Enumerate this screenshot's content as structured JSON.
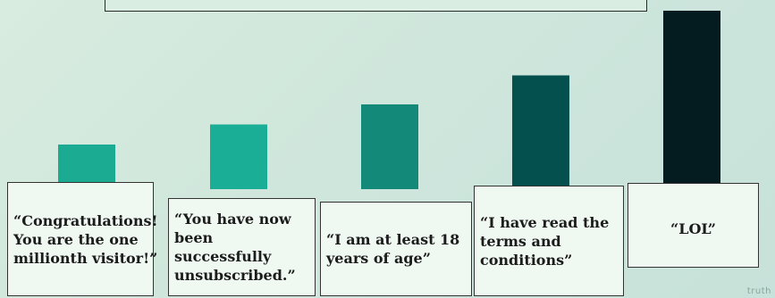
{
  "chart_data": {
    "type": "bar",
    "categories": [
      "“Congratulations! You are the one millionth visitor!”",
      "“You have now been successfully unsubscribed.”",
      "“I am at least 18 years of age”",
      "“I have read the terms and conditions”",
      "“LOL”"
    ],
    "values": [
      20,
      29,
      38,
      51,
      80
    ],
    "ylim": [
      0,
      82
    ],
    "colors": [
      "#1bab93",
      "#1aae96",
      "#138a79",
      "#04504e",
      "#041c20"
    ],
    "grid": false,
    "legend": "none"
  },
  "watermark": "truth"
}
